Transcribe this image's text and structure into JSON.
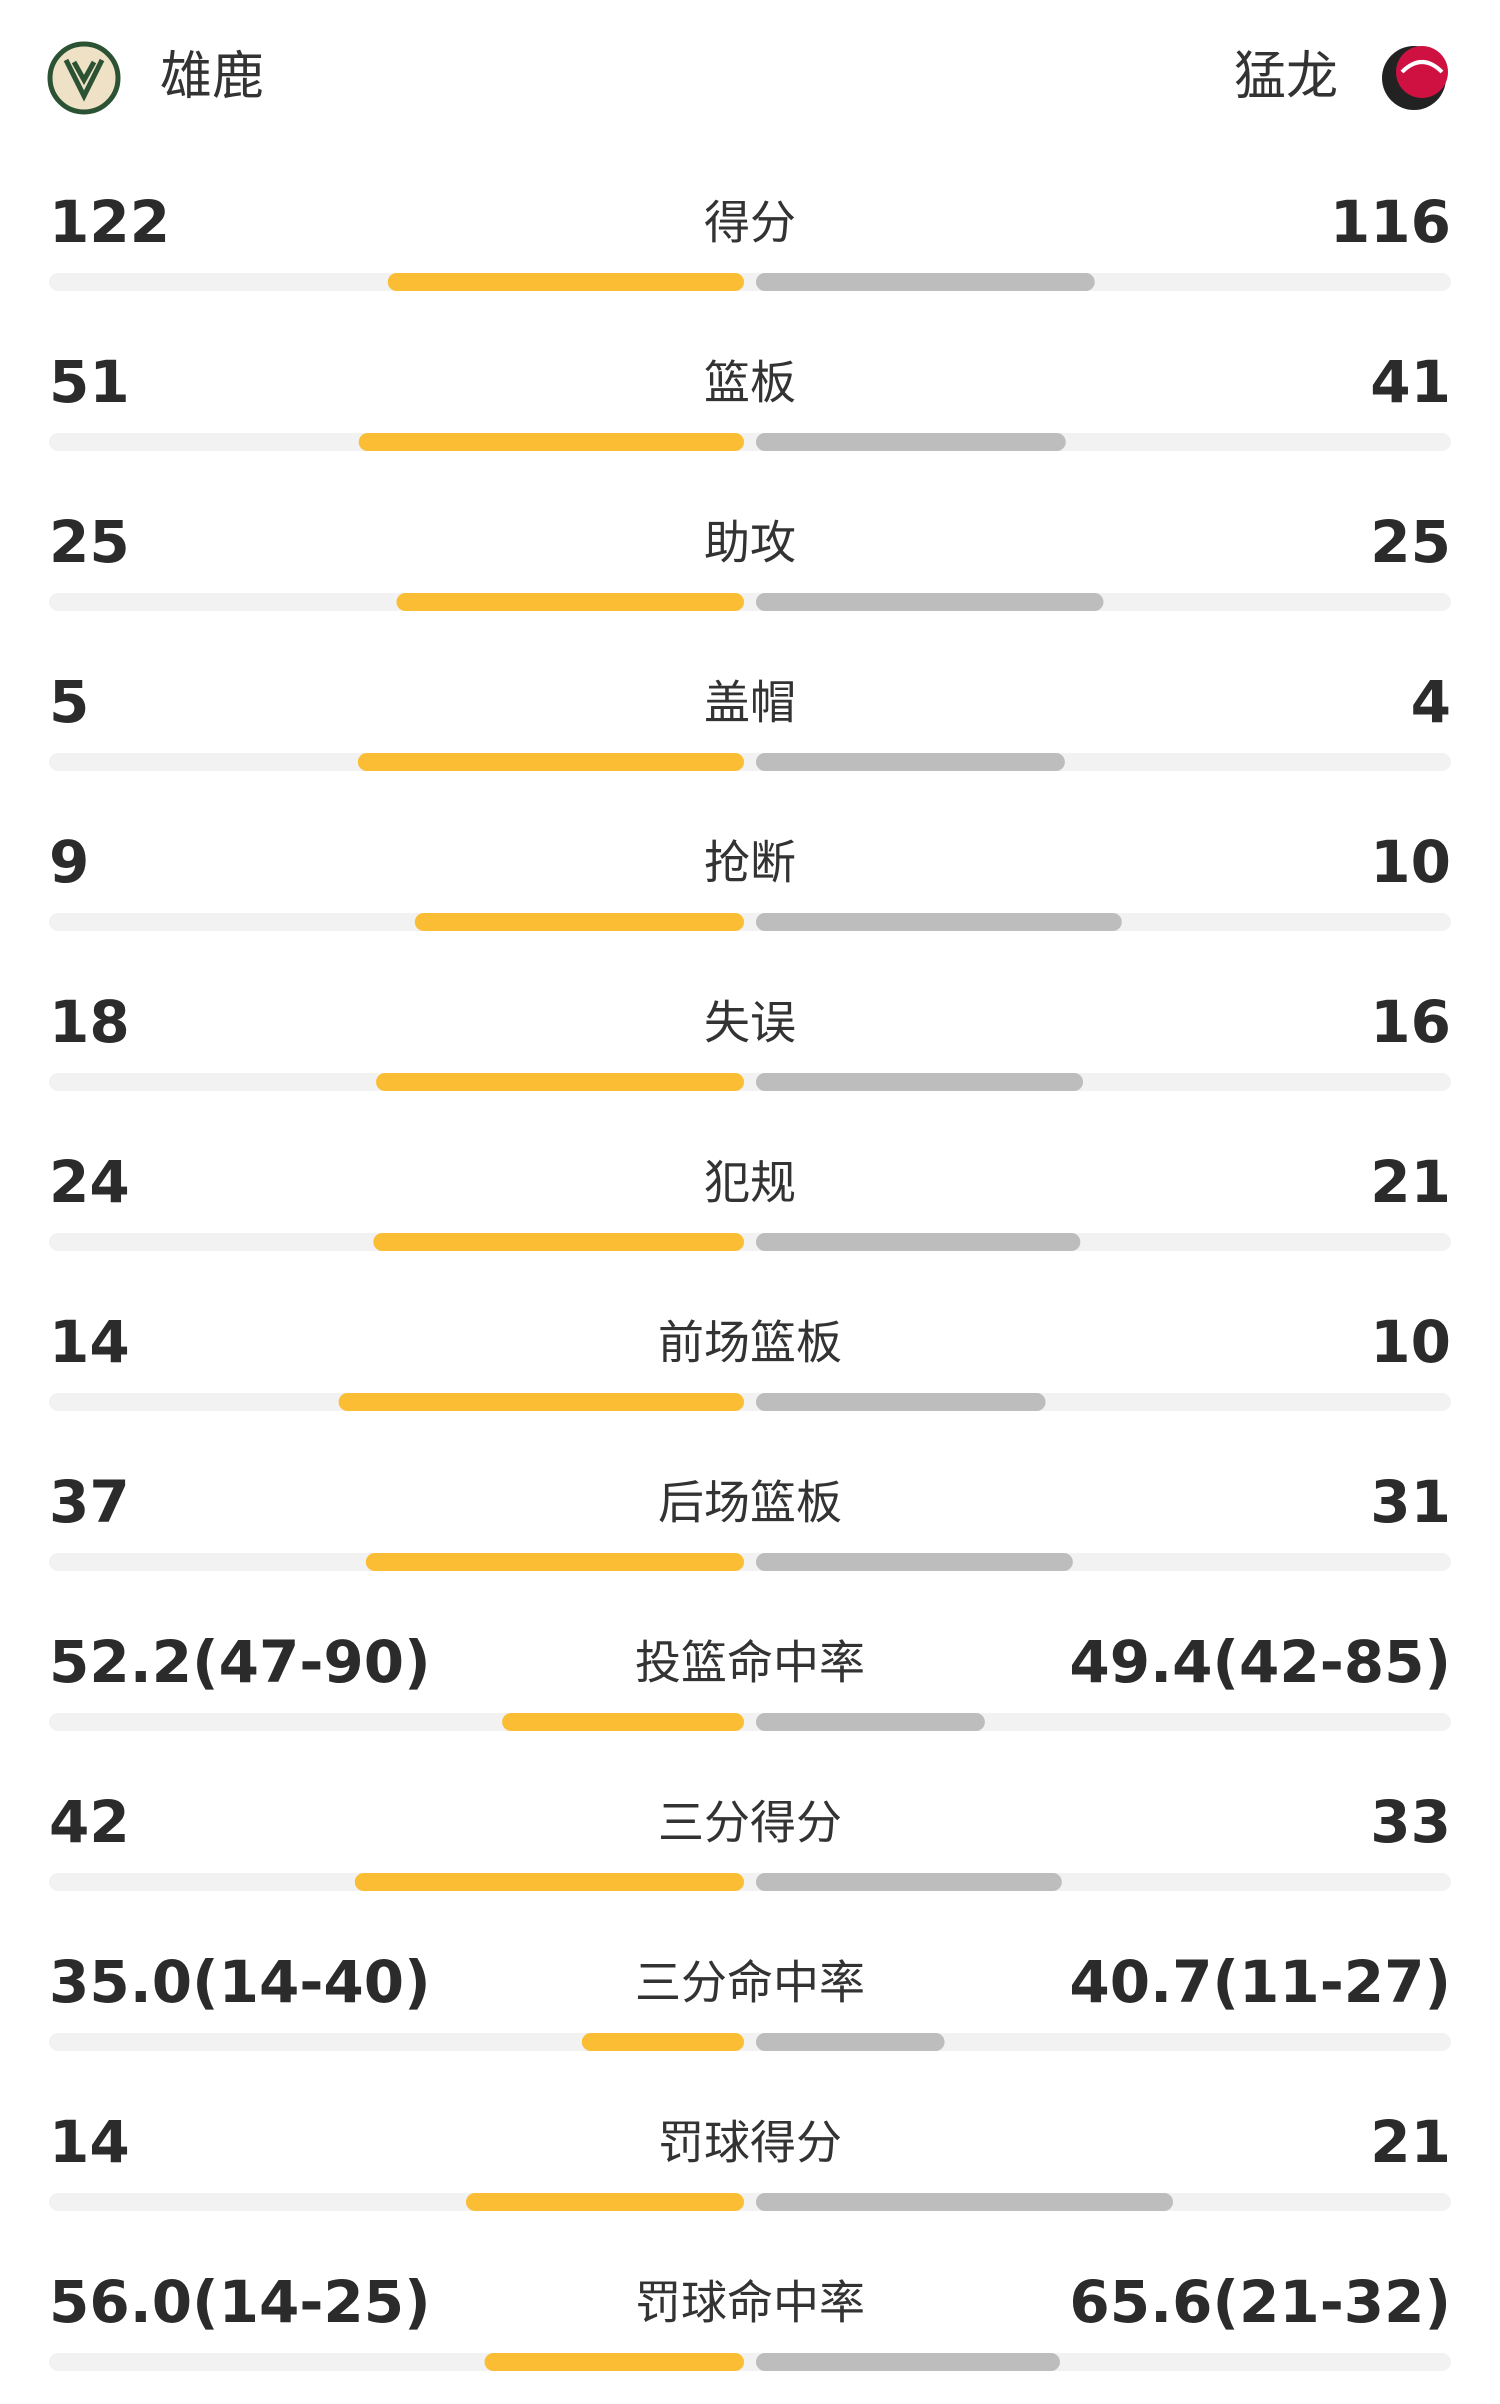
{
  "header": {
    "home": "雄鹿",
    "away": "猛龙"
  },
  "home_color": "#fbbd33",
  "away_color": "#bdbdbd",
  "track_color": "#f2f2f2",
  "rows": [
    {
      "label": "得分",
      "home": 122,
      "away": 116
    },
    {
      "label": "篮板",
      "home": 51,
      "away": 41
    },
    {
      "label": "助攻",
      "home": 25,
      "away": 25
    },
    {
      "label": "盖帽",
      "home": 5,
      "away": 4
    },
    {
      "label": "抢断",
      "home": 9,
      "away": 10
    },
    {
      "label": "失误",
      "home": 18,
      "away": 16
    },
    {
      "label": "犯规",
      "home": 24,
      "away": 21
    },
    {
      "label": "前场篮板",
      "home": 14,
      "away": 10
    },
    {
      "label": "后场篮板",
      "home": 37,
      "away": 31
    },
    {
      "label": "投篮命中率",
      "home": 52.2,
      "home_label": "52.2(47-90)",
      "away": 49.4,
      "away_label": "49.4(42-85)"
    },
    {
      "label": "三分得分",
      "home": 42,
      "away": 33
    },
    {
      "label": "三分命中率",
      "home": 35.0,
      "home_label": "35.0(14-40)",
      "away": 40.7,
      "away_label": "40.7(11-27)"
    },
    {
      "label": "罚球得分",
      "home": 14,
      "away": 21
    },
    {
      "label": "罚球命中率",
      "home": 56.0,
      "home_label": "56.0(14-25)",
      "away": 65.6,
      "away_label": "65.6(21-32)"
    }
  ]
}
